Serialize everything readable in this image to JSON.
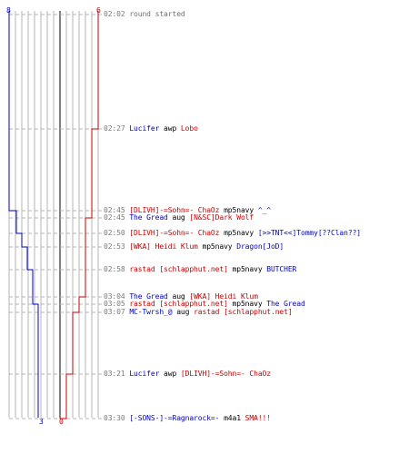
{
  "colors": {
    "team_blue": "#0000c8",
    "team_red": "#c80000",
    "time": "#7a7a7a",
    "grid": "#b4b4b4",
    "center_line": "#808080"
  },
  "counts": {
    "blue_start": "8",
    "red_start": "6",
    "blue_end": "3",
    "red_end": "0"
  },
  "events": [
    {
      "time": "02:02",
      "msg": "round started"
    },
    {
      "time": "02:27",
      "killer": "Lucifer",
      "killer_team": "blue",
      "weapon": "awp",
      "victim": "Lobo",
      "victim_team": "red"
    },
    {
      "time": "02:45",
      "killer": "[DLIVH]-=Sohn=- ChaOz",
      "killer_team": "red",
      "weapon": "mp5navy",
      "victim": "^_^",
      "victim_team": "blue"
    },
    {
      "time": "02:45",
      "killer": "The Gread",
      "killer_team": "blue",
      "weapon": "aug",
      "victim": "[N&SC]Dark Wolf",
      "victim_team": "red"
    },
    {
      "time": "02:50",
      "killer": "[DLIVH]-=Sohn=- ChaOz",
      "killer_team": "red",
      "weapon": "mp5navy",
      "victim": "[>>TNT<<]Tommy[??Clan??]",
      "victim_team": "blue"
    },
    {
      "time": "02:53",
      "killer": "[WKA] Heidi Klum",
      "killer_team": "red",
      "weapon": "mp5navy",
      "victim": "Dragon[JoD]",
      "victim_team": "blue"
    },
    {
      "time": "02:58",
      "killer": "rastad  [schlapphut.net]",
      "killer_team": "red",
      "weapon": "mp5navy",
      "victim": "BUTCHER",
      "victim_team": "blue"
    },
    {
      "time": "03:04",
      "killer": "The Gread",
      "killer_team": "blue",
      "weapon": "aug",
      "victim": "[WKA] Heidi Klum",
      "victim_team": "red"
    },
    {
      "time": "03:05",
      "killer": "rastad  [schlapphut.net]",
      "killer_team": "red",
      "weapon": "mp5navy",
      "victim": "The Gread",
      "victim_team": "blue"
    },
    {
      "time": "03:07",
      "killer": "MC-Twrsh_@",
      "killer_team": "blue",
      "weapon": "aug",
      "victim": "rastad  [schlapphut.net]",
      "victim_team": "red"
    },
    {
      "time": "03:21",
      "killer": "Lucifer",
      "killer_team": "blue",
      "weapon": "awp",
      "victim": "[DLIVH]-=Sohn=- ChaOz",
      "victim_team": "red"
    },
    {
      "time": "03:30",
      "killer": "[-SONS-]-=Ragnarock=-",
      "killer_team": "blue",
      "weapon": "m4a1",
      "victim": "SMA!!!",
      "victim_team": "red"
    }
  ]
}
